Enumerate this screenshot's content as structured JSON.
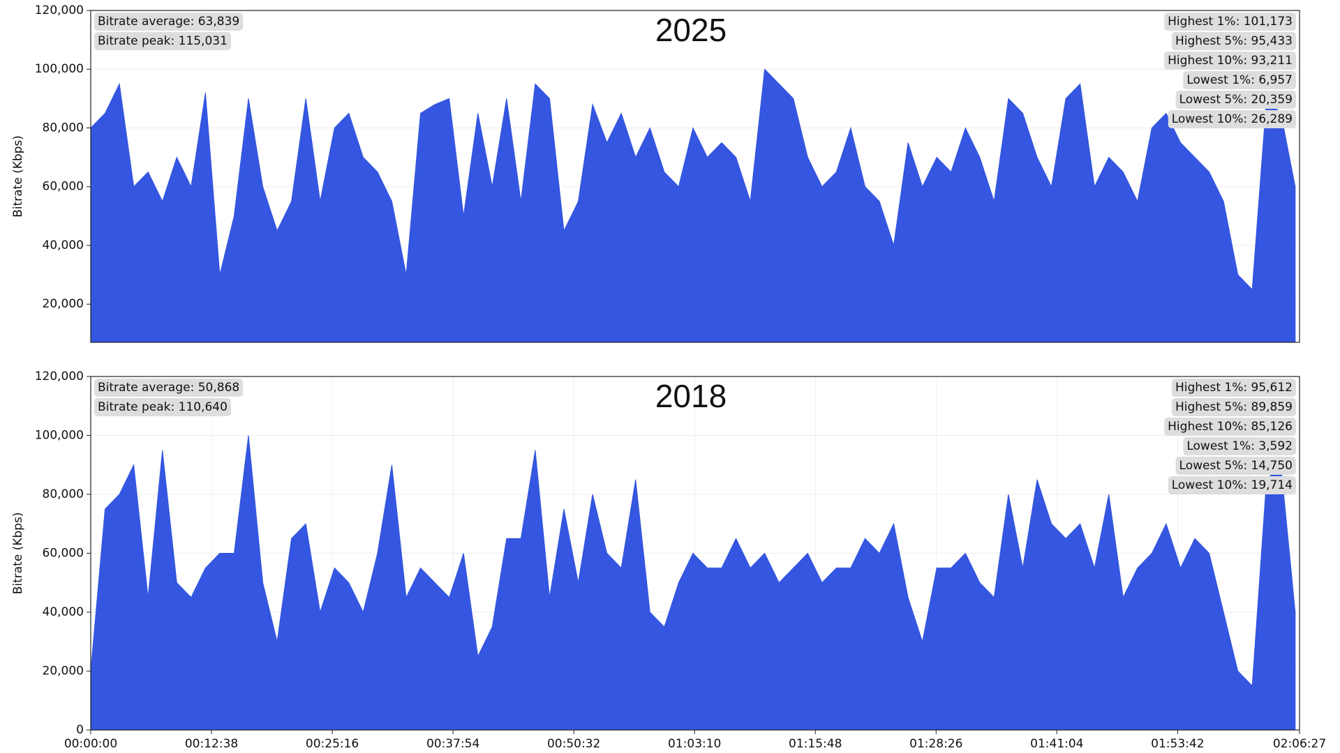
{
  "chart_data": [
    {
      "type": "area",
      "title": "2025",
      "ylabel": "Bitrate (Kbps)",
      "color": "#3456e0",
      "grid": true,
      "annotations_left": [
        "Bitrate average: 63,839",
        "Bitrate peak: 115,031"
      ],
      "annotations_right": [
        "Highest 1%: 101,173",
        "Highest 5%: 95,433",
        "Highest 10%: 93,211",
        "Lowest 1%: 6,957",
        "Lowest 5%: 20,359",
        "Lowest 10%: 26,289"
      ],
      "xlim": [
        0,
        7587
      ],
      "ylim": [
        7000,
        120000
      ],
      "yticks": [
        {
          "value": 20000,
          "label": "20,000"
        },
        {
          "value": 40000,
          "label": "40,000"
        },
        {
          "value": 60000,
          "label": "60,000"
        },
        {
          "value": 80000,
          "label": "80,000"
        },
        {
          "value": 100000,
          "label": "100,000"
        },
        {
          "value": 120000,
          "label": "120,000"
        }
      ],
      "x": [
        0,
        90,
        180,
        270,
        360,
        450,
        540,
        630,
        720,
        810,
        900,
        990,
        1080,
        1170,
        1260,
        1350,
        1440,
        1530,
        1620,
        1710,
        1800,
        1890,
        1980,
        2070,
        2160,
        2250,
        2340,
        2430,
        2520,
        2610,
        2700,
        2790,
        2880,
        2970,
        3060,
        3150,
        3240,
        3330,
        3420,
        3510,
        3600,
        3690,
        3780,
        3870,
        3960,
        4050,
        4140,
        4230,
        4320,
        4410,
        4500,
        4590,
        4680,
        4770,
        4860,
        4950,
        5040,
        5130,
        5220,
        5310,
        5400,
        5490,
        5580,
        5670,
        5760,
        5850,
        5940,
        6030,
        6120,
        6210,
        6300,
        6390,
        6480,
        6570,
        6660,
        6750,
        6840,
        6930,
        7020,
        7110,
        7200,
        7290,
        7380,
        7470,
        7560
      ],
      "values": [
        80000,
        85000,
        95000,
        60000,
        65000,
        55000,
        70000,
        60000,
        92000,
        30000,
        50000,
        90000,
        60000,
        45000,
        55000,
        90000,
        55000,
        80000,
        85000,
        70000,
        65000,
        55000,
        30000,
        85000,
        88000,
        90000,
        50000,
        85000,
        60000,
        90000,
        55000,
        95000,
        90000,
        45000,
        55000,
        88000,
        75000,
        85000,
        70000,
        80000,
        65000,
        60000,
        80000,
        70000,
        75000,
        70000,
        55000,
        100000,
        95000,
        90000,
        70000,
        60000,
        65000,
        80000,
        60000,
        55000,
        40000,
        75000,
        60000,
        70000,
        65000,
        80000,
        70000,
        55000,
        90000,
        85000,
        70000,
        60000,
        90000,
        95000,
        60000,
        70000,
        65000,
        55000,
        80000,
        85000,
        75000,
        70000,
        65000,
        55000,
        30000,
        25000,
        90000,
        85000,
        60000
      ]
    },
    {
      "type": "area",
      "title": "2018",
      "ylabel": "Bitrate (Kbps)",
      "color": "#3456e0",
      "grid": true,
      "annotations_left": [
        "Bitrate average: 50,868",
        "Bitrate peak: 110,640"
      ],
      "annotations_right": [
        "Highest 1%: 95,612",
        "Highest 5%: 89,859",
        "Highest 10%: 85,126",
        "Lowest 1%: 3,592",
        "Lowest 5%: 14,750",
        "Lowest 10%: 19,714"
      ],
      "xlim": [
        0,
        7587
      ],
      "ylim": [
        0,
        120000
      ],
      "yticks": [
        0,
        {
          "value": 20000,
          "label": "20,000"
        },
        {
          "value": 40000,
          "label": "40,000"
        },
        {
          "value": 60000,
          "label": "60,000"
        },
        {
          "value": 80000,
          "label": "80,000"
        },
        {
          "value": 100000,
          "label": "100,000"
        },
        {
          "value": 120000,
          "label": "120,000"
        }
      ],
      "xticks": [
        {
          "value": 0,
          "label": "00:00:00"
        },
        {
          "value": 758,
          "label": "00:12:38"
        },
        {
          "value": 1516,
          "label": "00:25:16"
        },
        {
          "value": 2274,
          "label": "00:37:54"
        },
        {
          "value": 3032,
          "label": "00:50:32"
        },
        {
          "value": 3790,
          "label": "01:03:10"
        },
        {
          "value": 4548,
          "label": "01:15:48"
        },
        {
          "value": 5306,
          "label": "01:28:26"
        },
        {
          "value": 6064,
          "label": "01:41:04"
        },
        {
          "value": 6822,
          "label": "01:53:42"
        },
        {
          "value": 7587,
          "label": "02:06:27"
        }
      ],
      "x": [
        0,
        90,
        180,
        270,
        360,
        450,
        540,
        630,
        720,
        810,
        900,
        990,
        1080,
        1170,
        1260,
        1350,
        1440,
        1530,
        1620,
        1710,
        1800,
        1890,
        1980,
        2070,
        2160,
        2250,
        2340,
        2430,
        2520,
        2610,
        2700,
        2790,
        2880,
        2970,
        3060,
        3150,
        3240,
        3330,
        3420,
        3510,
        3600,
        3690,
        3780,
        3870,
        3960,
        4050,
        4140,
        4230,
        4320,
        4410,
        4500,
        4590,
        4680,
        4770,
        4860,
        4950,
        5040,
        5130,
        5220,
        5310,
        5400,
        5490,
        5580,
        5670,
        5760,
        5850,
        5940,
        6030,
        6120,
        6210,
        6300,
        6390,
        6480,
        6570,
        6660,
        6750,
        6840,
        6930,
        7020,
        7110,
        7200,
        7290,
        7380,
        7470,
        7560
      ],
      "values": [
        20000,
        75000,
        80000,
        90000,
        45000,
        95000,
        50000,
        45000,
        55000,
        60000,
        60000,
        100000,
        50000,
        30000,
        65000,
        70000,
        40000,
        55000,
        50000,
        40000,
        60000,
        90000,
        45000,
        55000,
        50000,
        45000,
        60000,
        25000,
        35000,
        65000,
        65000,
        95000,
        45000,
        75000,
        50000,
        80000,
        60000,
        55000,
        85000,
        40000,
        35000,
        50000,
        60000,
        55000,
        55000,
        65000,
        55000,
        60000,
        50000,
        55000,
        60000,
        50000,
        55000,
        55000,
        65000,
        60000,
        70000,
        45000,
        30000,
        55000,
        55000,
        60000,
        50000,
        45000,
        80000,
        55000,
        85000,
        70000,
        65000,
        70000,
        55000,
        80000,
        45000,
        55000,
        60000,
        70000,
        55000,
        65000,
        60000,
        40000,
        20000,
        15000,
        85000,
        90000,
        40000
      ]
    }
  ]
}
